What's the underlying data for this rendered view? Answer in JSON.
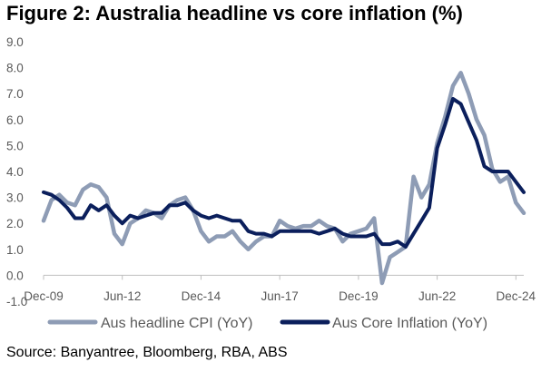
{
  "chart_data": {
    "type": "line",
    "title": "Figure 2: Australia headline vs core inflation (%)",
    "source": "Source: Banyantree, Bloomberg, RBA, ABS",
    "xlabel": "",
    "ylabel": "",
    "x_start": "2009-12",
    "x_step_months": 3,
    "x_tick_labels": [
      "Dec-09",
      "Jun-12",
      "Dec-14",
      "Jun-17",
      "Dec-19",
      "Jun-22",
      "Dec-24"
    ],
    "x_tick_indices": [
      0,
      10,
      20,
      30,
      40,
      50,
      60
    ],
    "y_tick_labels": [
      "-1.0",
      "0.0",
      "1.0",
      "2.0",
      "3.0",
      "4.0",
      "5.0",
      "6.0",
      "7.0",
      "8.0",
      "9.0"
    ],
    "ylim": [
      -1.0,
      9.0
    ],
    "grid": false,
    "legend_position": "bottom",
    "series": [
      {
        "name": "Aus headline CPI (YoY)",
        "color": "#8E9CB5",
        "values": [
          2.1,
          2.9,
          3.1,
          2.8,
          2.7,
          3.3,
          3.5,
          3.4,
          3.0,
          1.6,
          1.2,
          2.0,
          2.2,
          2.5,
          2.4,
          2.2,
          2.7,
          2.9,
          3.0,
          2.5,
          1.7,
          1.3,
          1.5,
          1.5,
          1.7,
          1.3,
          1.0,
          1.3,
          1.5,
          1.5,
          2.1,
          1.9,
          1.8,
          1.9,
          1.9,
          2.1,
          1.9,
          1.8,
          1.3,
          1.6,
          1.7,
          1.8,
          2.2,
          -0.3,
          0.7,
          0.9,
          1.1,
          3.8,
          3.0,
          3.5,
          5.1,
          6.1,
          7.3,
          7.8,
          7.0,
          6.0,
          5.4,
          4.1,
          3.6,
          3.8,
          2.8,
          2.4
        ]
      },
      {
        "name": "Aus Core Inflation (YoY)",
        "color": "#0B1F5C",
        "values": [
          3.2,
          3.1,
          2.9,
          2.6,
          2.2,
          2.2,
          2.7,
          2.5,
          2.7,
          2.3,
          2.0,
          2.3,
          2.2,
          2.3,
          2.4,
          2.4,
          2.7,
          2.7,
          2.8,
          2.5,
          2.3,
          2.2,
          2.3,
          2.2,
          2.1,
          2.1,
          1.7,
          1.6,
          1.6,
          1.5,
          1.7,
          1.7,
          1.7,
          1.7,
          1.7,
          1.6,
          1.7,
          1.8,
          1.6,
          1.5,
          1.5,
          1.5,
          1.6,
          1.2,
          1.2,
          1.3,
          1.1,
          1.6,
          2.1,
          2.6,
          4.9,
          5.8,
          6.8,
          6.6,
          5.9,
          5.2,
          4.2,
          4.0,
          4.0,
          4.0,
          3.6,
          3.2
        ]
      }
    ]
  }
}
